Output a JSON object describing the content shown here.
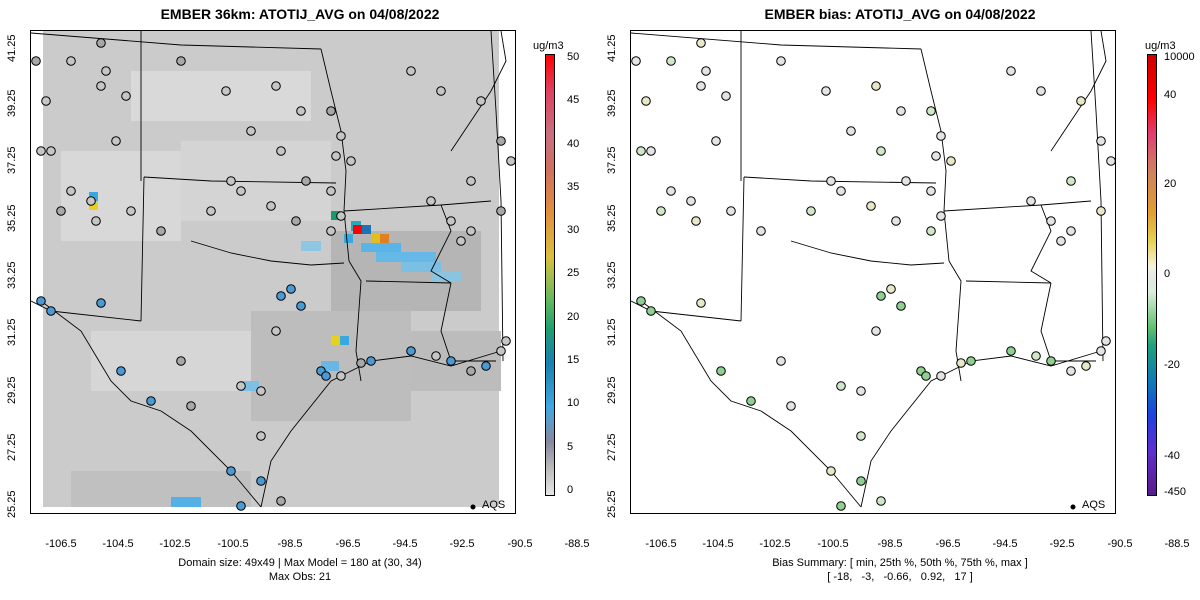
{
  "left": {
    "title": "EMBER 36km: ATOTIJ_AVG on 04/08/2022",
    "caption_line1": "Domain size: 49x49 | Max Model = 180 at (30, 34)",
    "caption_line2": "Max Obs: 21",
    "colorbar_unit": "ug/m3",
    "colorbar_labels": [
      "50",
      "45",
      "40",
      "35",
      "30",
      "25",
      "20",
      "15",
      "10",
      "5",
      "0"
    ],
    "legend_label": "AQS"
  },
  "right": {
    "title": "EMBER bias: ATOTIJ_AVG on 04/08/2022",
    "caption_line1": "Bias Summary: [ min, 25th %, 50th %, 75th %, max ]",
    "caption_line2": "[ -18,   -3,   -0.66,   0.92,   17 ]",
    "colorbar_unit": "ug/m3",
    "colorbar_labels": [
      "10000",
      "40",
      "20",
      "0",
      "-20",
      "-40",
      "-450"
    ],
    "legend_label": "AQS"
  },
  "axes": {
    "yticks": [
      "41.25",
      "39.25",
      "37.25",
      "35.25",
      "33.25",
      "31.25",
      "29.25",
      "27.25",
      "25.25"
    ],
    "xticks": [
      "-106.5",
      "-104.5",
      "-102.5",
      "-100.5",
      "-98.5",
      "-96.5",
      "-94.5",
      "-92.5",
      "-90.5",
      "-88.5"
    ]
  },
  "colors": {
    "grid_background": "#c8c8c8",
    "colorbar_high": "#ff0000",
    "colorbar_low": "#e6e6e6",
    "bias_high": "#cc0000",
    "bias_low": "#5a1a8a"
  }
}
